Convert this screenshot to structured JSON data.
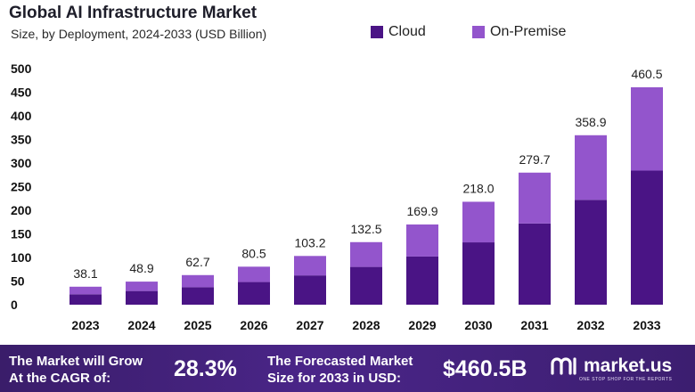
{
  "header": {
    "title": "Global AI Infrastructure Market",
    "subtitle": "Size, by Deployment, 2024-2033 (USD Billion)"
  },
  "colors": {
    "cloud": "#4a1485",
    "on_premise": "#9355cc",
    "axis_text": "#111111"
  },
  "chart_data": {
    "type": "bar",
    "stacked": true,
    "title": "Global AI Infrastructure Market",
    "subtitle": "Size, by Deployment, 2024-2033 (USD Billion)",
    "xlabel": "",
    "ylabel": "",
    "ylim": [
      0,
      500
    ],
    "yticks": [
      0,
      50,
      100,
      150,
      200,
      250,
      300,
      350,
      400,
      450,
      500
    ],
    "grid": false,
    "legend": "top-right",
    "categories": [
      "2023",
      "2024",
      "2025",
      "2026",
      "2027",
      "2028",
      "2029",
      "2030",
      "2031",
      "2032",
      "2033"
    ],
    "series": [
      {
        "name": "Cloud",
        "values": [
          22,
          29,
          37,
          48,
          62,
          80,
          102,
          132,
          172,
          222,
          284
        ]
      },
      {
        "name": "On-Premise",
        "values": [
          16.1,
          19.9,
          25.7,
          32.5,
          41.2,
          52.5,
          67.9,
          86.0,
          107.7,
          136.9,
          176.5
        ]
      }
    ],
    "totals": [
      38.1,
      48.9,
      62.7,
      80.5,
      103.2,
      132.5,
      169.9,
      218.0,
      279.7,
      358.9,
      460.5
    ],
    "total_labels": [
      "38.1",
      "48.9",
      "62.7",
      "80.5",
      "103.2",
      "132.5",
      "169.9",
      "218.0",
      "279.7",
      "358.9",
      "460.5"
    ]
  },
  "legend": [
    {
      "label": "Cloud"
    },
    {
      "label": "On-Premise"
    }
  ],
  "footer": {
    "cagr_label_line1": "The Market will Grow",
    "cagr_label_line2": "At the CAGR of:",
    "cagr_value": "28.3%",
    "forecast_label_line1": "The Forecasted Market",
    "forecast_label_line2": "Size for 2033 in USD:",
    "forecast_value": "$460.5B",
    "brand_name": "market.us",
    "brand_tagline": "ONE STOP SHOP FOR THE REPORTS"
  }
}
